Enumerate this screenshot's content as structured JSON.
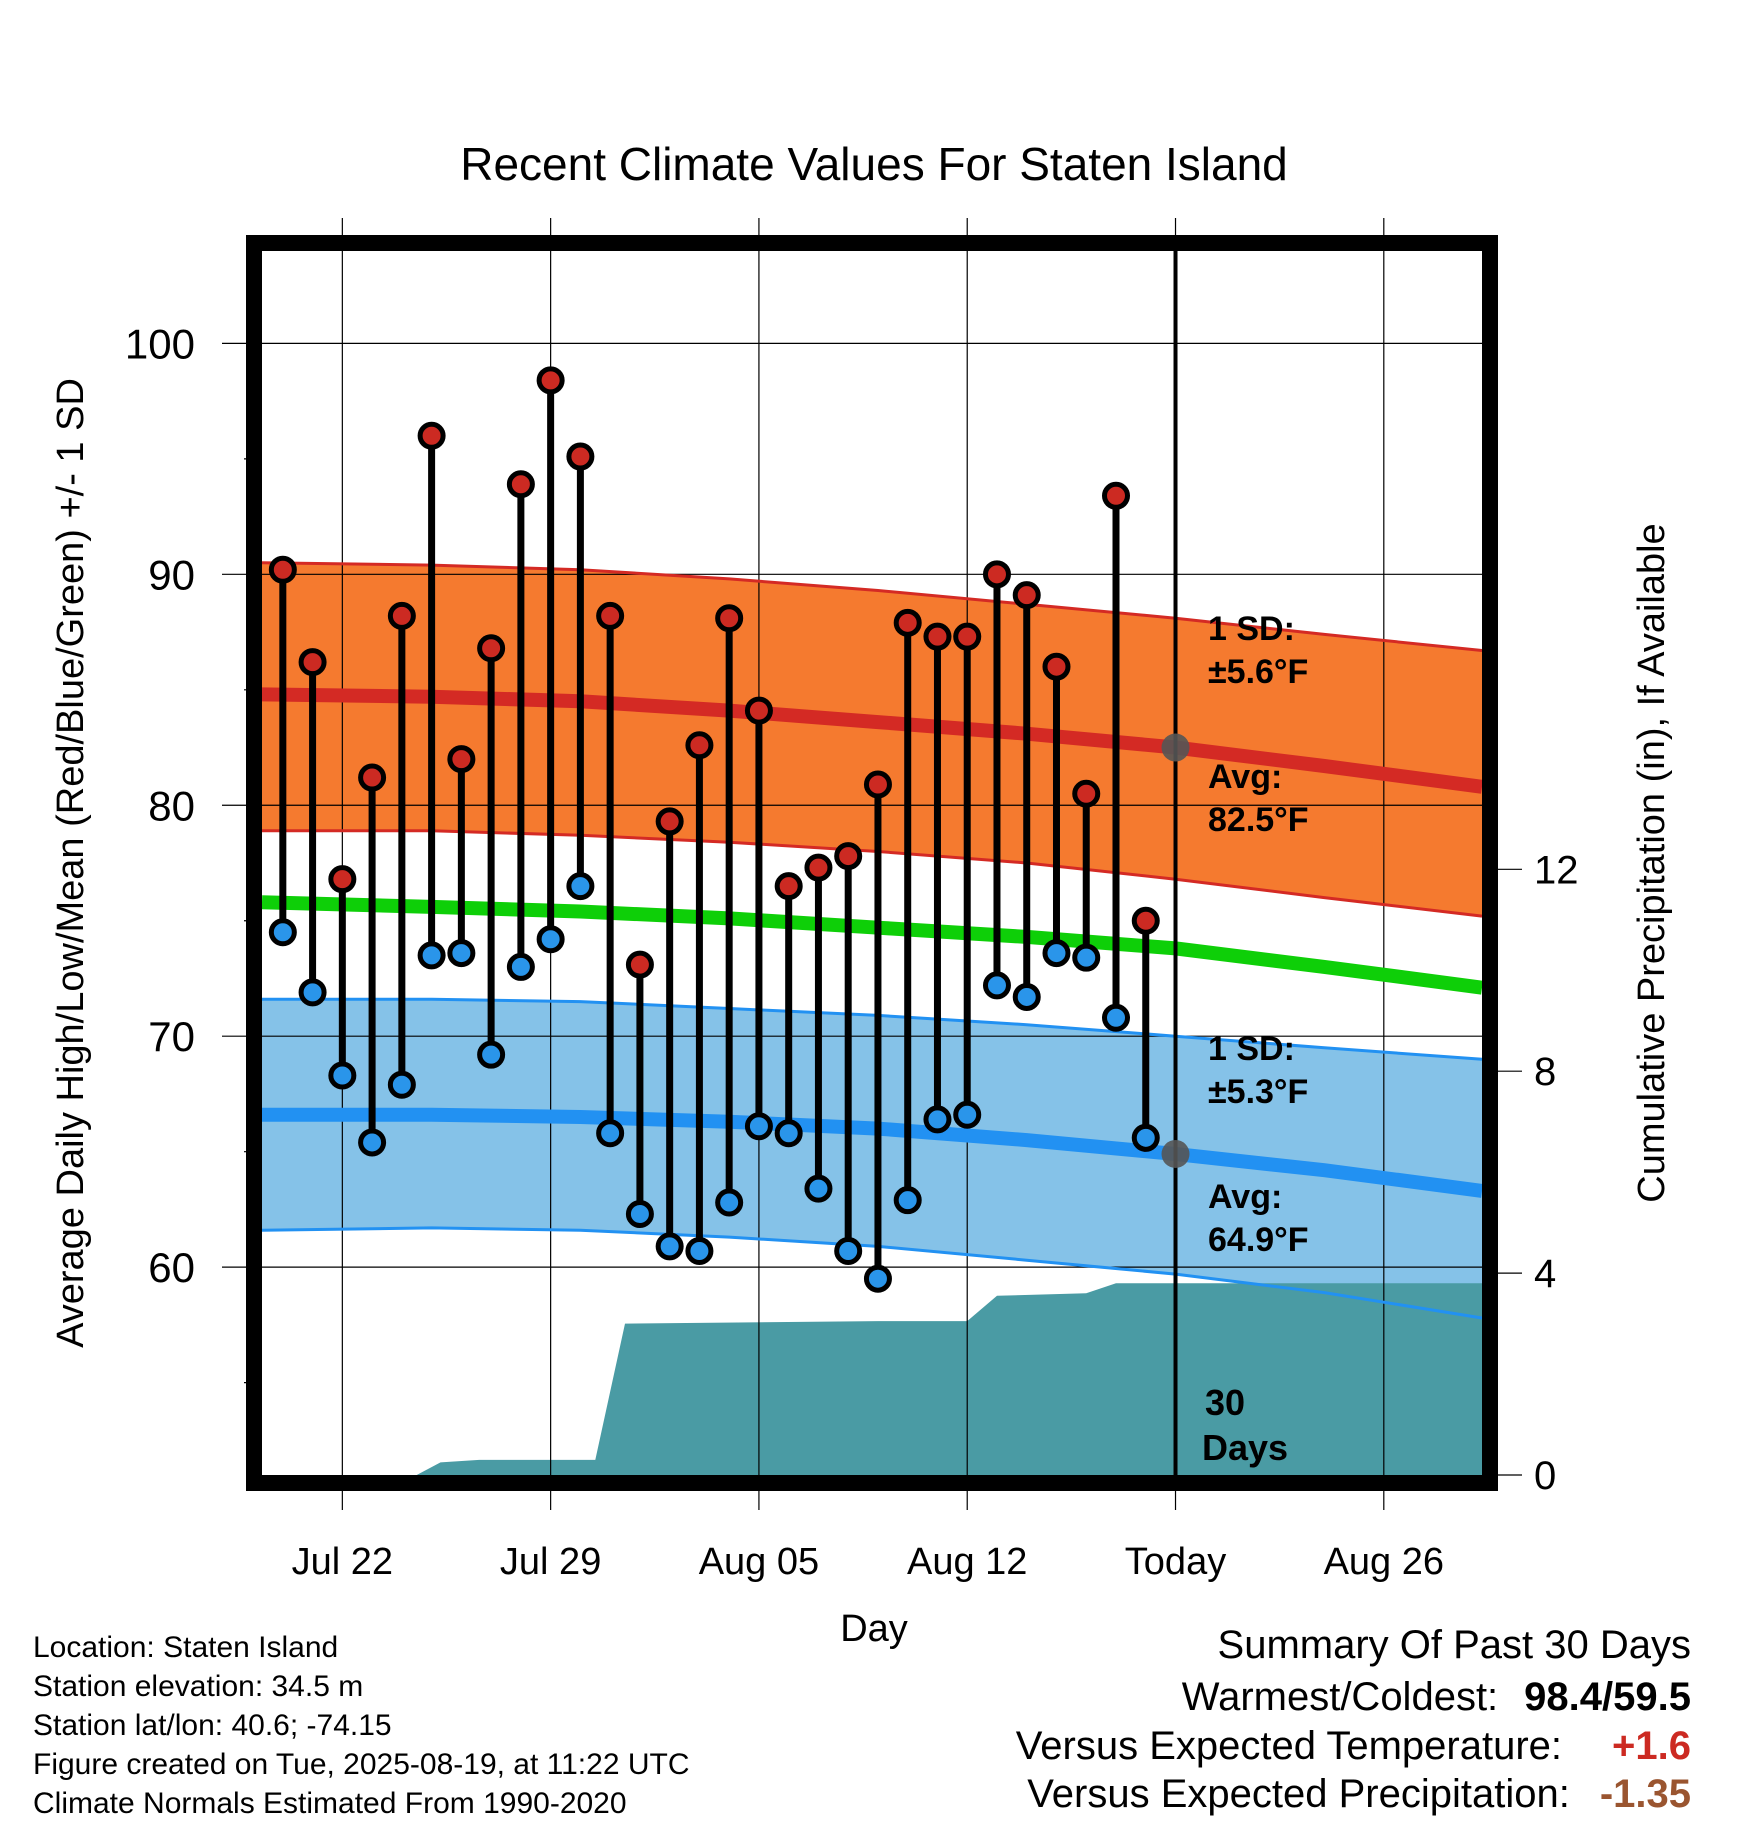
{
  "chart_data": {
    "type": "line",
    "title": "Recent Climate Values For Staten Island",
    "xlabel": "Day",
    "ylabel_left": "Average Daily High/Low/Mean (Red/Blue/Green) +/- 1 SD",
    "ylabel_right": "Cumulative Precipitation (in), If Available",
    "x_tick_labels": [
      "Jul 22",
      "Jul 29",
      "Aug 05",
      "Aug 12",
      "Today",
      "Aug 26"
    ],
    "x_ticks_day_index": [
      2,
      9,
      16,
      23,
      30,
      37
    ],
    "x_range_day_index": [
      -0.7,
      40.3
    ],
    "ylim_left": [
      51,
      104
    ],
    "y_ticks_left": [
      60,
      70,
      80,
      90,
      100
    ],
    "ylim_right": [
      0,
      24.25
    ],
    "y_ticks_right": [
      0,
      4,
      8,
      12
    ],
    "grid": true,
    "today_day_index": 30,
    "today_annotation": "30 Days",
    "days": [
      0,
      1,
      2,
      3,
      4,
      5,
      6,
      7,
      8,
      9,
      10,
      11,
      12,
      13,
      14,
      15,
      16,
      17,
      18,
      19,
      20,
      21,
      22,
      23,
      24,
      25,
      26,
      27,
      28,
      29
    ],
    "daily_high": [
      90.2,
      86.2,
      76.8,
      81.2,
      88.2,
      96.0,
      82.0,
      86.8,
      93.9,
      98.4,
      95.1,
      88.2,
      73.1,
      79.3,
      82.6,
      88.1,
      84.1,
      76.5,
      77.3,
      77.8,
      80.9,
      87.9,
      87.3,
      87.3,
      90.0,
      89.1,
      86.0,
      80.5,
      93.4,
      75.0
    ],
    "daily_low": [
      74.5,
      71.9,
      68.3,
      65.4,
      67.9,
      73.5,
      73.6,
      69.2,
      73.0,
      74.2,
      76.5,
      65.8,
      62.3,
      60.9,
      60.7,
      62.8,
      66.1,
      65.8,
      63.4,
      60.7,
      59.5,
      62.9,
      66.4,
      66.6,
      72.2,
      71.7,
      73.6,
      73.4,
      70.8,
      65.6
    ],
    "normal_high": {
      "x": [
        -0.7,
        5,
        10,
        15,
        20,
        25,
        30,
        35,
        40.3
      ],
      "mean": [
        84.8,
        84.7,
        84.5,
        84.1,
        83.6,
        83.1,
        82.5,
        81.7,
        80.8
      ],
      "upper": [
        90.5,
        90.4,
        90.2,
        89.8,
        89.3,
        88.7,
        88.1,
        87.4,
        86.7
      ],
      "lower": [
        78.9,
        78.9,
        78.7,
        78.4,
        78.0,
        77.5,
        76.8,
        76.0,
        75.2
      ]
    },
    "normal_mean": {
      "x": [
        -0.7,
        5,
        10,
        15,
        20,
        25,
        30,
        35,
        40.3
      ],
      "values": [
        75.8,
        75.6,
        75.4,
        75.1,
        74.7,
        74.3,
        73.8,
        73.0,
        72.1
      ]
    },
    "normal_low": {
      "x": [
        -0.7,
        5,
        10,
        15,
        20,
        25,
        30,
        35,
        40.3
      ],
      "mean": [
        66.6,
        66.6,
        66.5,
        66.3,
        66.0,
        65.5,
        64.9,
        64.2,
        63.3
      ],
      "upper": [
        71.6,
        71.6,
        71.5,
        71.2,
        70.9,
        70.5,
        70.0,
        69.5,
        69.0
      ],
      "lower": [
        61.6,
        61.7,
        61.6,
        61.3,
        60.9,
        60.3,
        59.7,
        58.9,
        57.8
      ]
    },
    "cumulative_precip": {
      "x": [
        -0.7,
        4.5,
        5.3,
        6.6,
        10.5,
        11.5,
        20.0,
        23.0,
        24.0,
        27.0,
        28.0,
        40.3
      ],
      "values": [
        0,
        0,
        0.25,
        0.3,
        0.3,
        3.0,
        3.05,
        3.05,
        3.55,
        3.6,
        3.8,
        3.8
      ]
    },
    "annotations": [
      {
        "label": "1 SD:",
        "value": "±5.6°F",
        "series": "high"
      },
      {
        "label": "Avg:",
        "value": "82.5°F",
        "series": "high"
      },
      {
        "label": "1 SD:",
        "value": "±5.3°F",
        "series": "low"
      },
      {
        "label": "Avg:",
        "value": "64.9°F",
        "series": "low"
      }
    ],
    "today_markers": {
      "high_avg": 82.5,
      "low_avg": 64.9
    }
  },
  "colors": {
    "high_band": "#f57a2f",
    "high_line": "#d42a24",
    "high_dot": "#cc2a22",
    "low_band": "#85c2e8",
    "low_line": "#2291f2",
    "low_dot": "#2a95ea",
    "mean_line": "#0ecf08",
    "precip": "#4a9ba4",
    "annotation": "#555555"
  },
  "meta": {
    "location": "Location: Staten Island",
    "elevation": "Station elevation: 34.5 m",
    "latlon": "Station lat/lon: 40.6; -74.15",
    "created": "Figure created on Tue, 2025-08-19, at 11:22 UTC",
    "normals": "Climate Normals Estimated From 1990-2020"
  },
  "summary": {
    "title": "Summary Of Past 30 Days",
    "warm_cold_label": "Warmest/Coldest:",
    "warm_cold_value": "98.4/59.5",
    "temp_label": "Versus Expected Temperature:",
    "temp_value": "+1.6",
    "temp_color": "#cc2a22",
    "precip_label": "Versus Expected Precipitation:",
    "precip_value": "-1.35",
    "precip_color": "#9a5530"
  }
}
